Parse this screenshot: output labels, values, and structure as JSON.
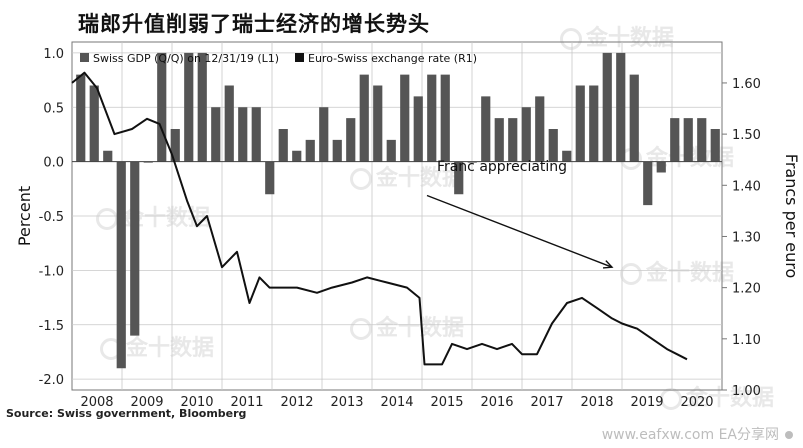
{
  "title": "瑞郎升值削弱了瑞士经济的增长势头",
  "source": "Source: Swiss government, Bloomberg",
  "footer": "www.eafxw.com  EA分享网",
  "watermark": "金十数据",
  "colors": {
    "bars": "#555555",
    "line": "#111111",
    "grid": "#c8c8c8",
    "text": "#222222"
  },
  "chart_data": {
    "type": "bar+line",
    "legend": {
      "placement": "top-left",
      "items": [
        "Swiss GDP (Q/Q) on 12/31/19 (L1)",
        "Euro-Swiss exchange rate (R1)"
      ]
    },
    "ylabel_left": "Percent",
    "ylabel_right": "Francs per euro",
    "ylim_left": [
      -2.1,
      1.1
    ],
    "ylim_right": [
      1.0,
      1.68
    ],
    "yticks_left": [
      "-2.0",
      "-1.5",
      "-1.0",
      "-0.5",
      "0.0",
      "0.5",
      "1.0"
    ],
    "yticks_right": [
      "1.00",
      "1.10",
      "1.20",
      "1.30",
      "1.40",
      "1.50",
      "1.60"
    ],
    "grid": true,
    "x_range": [
      2008.0,
      2021.0
    ],
    "years": [
      "2008",
      "2009",
      "2010",
      "2011",
      "2012",
      "2013",
      "2014",
      "2015",
      "2016",
      "2017",
      "2018",
      "2019",
      "2020"
    ],
    "series": [
      {
        "name": "Swiss GDP (Q/Q) on 12/31/19 (L1)",
        "kind": "bar",
        "values": [
          0.8,
          0.7,
          0.1,
          -1.9,
          -1.6,
          0.0,
          1.0,
          0.3,
          1.0,
          1.0,
          0.5,
          0.7,
          0.5,
          0.5,
          -0.3,
          0.3,
          0.1,
          0.2,
          0.5,
          0.2,
          0.4,
          0.8,
          0.7,
          0.2,
          0.8,
          0.6,
          0.8,
          0.8,
          -0.3,
          0.0,
          0.6,
          0.4,
          0.4,
          0.5,
          0.6,
          0.3,
          0.1,
          0.7,
          0.7,
          1.0,
          1.0,
          0.8,
          -0.4,
          -0.1,
          0.4,
          0.4,
          0.4,
          0.3
        ]
      },
      {
        "name": "Euro-Swiss exchange rate (R1)",
        "kind": "line",
        "points": [
          [
            2008.0,
            1.6
          ],
          [
            2008.25,
            1.62
          ],
          [
            2008.5,
            1.59
          ],
          [
            2008.85,
            1.5
          ],
          [
            2009.2,
            1.51
          ],
          [
            2009.5,
            1.53
          ],
          [
            2009.75,
            1.52
          ],
          [
            2010.0,
            1.46
          ],
          [
            2010.3,
            1.37
          ],
          [
            2010.5,
            1.32
          ],
          [
            2010.7,
            1.34
          ],
          [
            2011.0,
            1.24
          ],
          [
            2011.3,
            1.27
          ],
          [
            2011.55,
            1.17
          ],
          [
            2011.75,
            1.22
          ],
          [
            2011.95,
            1.2
          ],
          [
            2012.5,
            1.2
          ],
          [
            2012.9,
            1.19
          ],
          [
            2013.2,
            1.2
          ],
          [
            2013.6,
            1.21
          ],
          [
            2013.9,
            1.22
          ],
          [
            2014.3,
            1.21
          ],
          [
            2014.7,
            1.2
          ],
          [
            2014.95,
            1.18
          ],
          [
            2015.05,
            1.05
          ],
          [
            2015.4,
            1.05
          ],
          [
            2015.6,
            1.09
          ],
          [
            2015.9,
            1.08
          ],
          [
            2016.2,
            1.09
          ],
          [
            2016.5,
            1.08
          ],
          [
            2016.8,
            1.09
          ],
          [
            2017.0,
            1.07
          ],
          [
            2017.3,
            1.07
          ],
          [
            2017.6,
            1.13
          ],
          [
            2017.9,
            1.17
          ],
          [
            2018.2,
            1.18
          ],
          [
            2018.5,
            1.16
          ],
          [
            2018.8,
            1.14
          ],
          [
            2019.0,
            1.13
          ],
          [
            2019.3,
            1.12
          ],
          [
            2019.6,
            1.1
          ],
          [
            2019.9,
            1.08
          ],
          [
            2020.1,
            1.07
          ],
          [
            2020.3,
            1.06
          ]
        ]
      }
    ],
    "annotation": {
      "text": "Franc appreciating",
      "arrow_from": [
        2015.1,
        1.38
      ],
      "arrow_to": [
        2018.8,
        1.24
      ]
    }
  }
}
